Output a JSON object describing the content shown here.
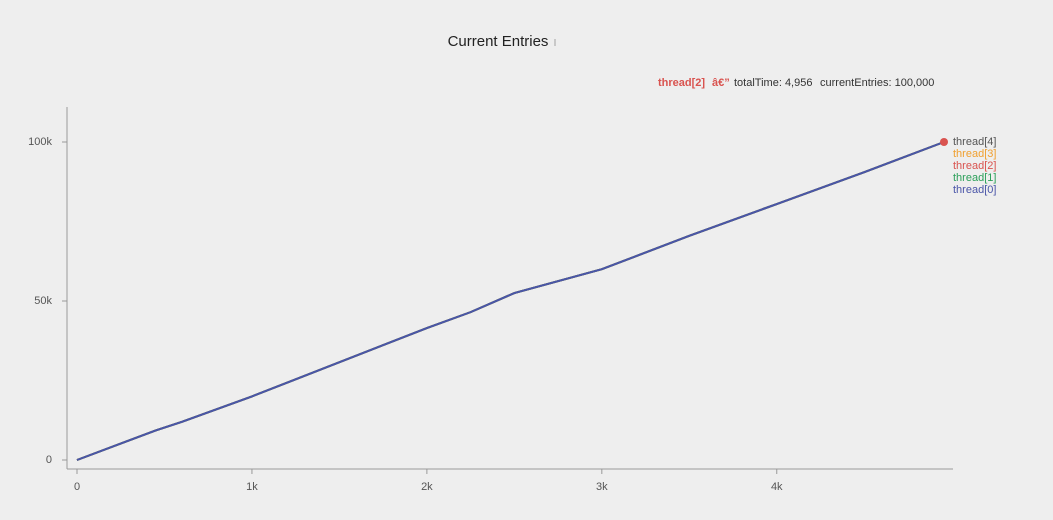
{
  "chart_data": {
    "type": "line",
    "title": "Current Entries",
    "x": [
      0,
      450,
      600,
      1000,
      2000,
      2250,
      2500,
      3000,
      3500,
      4000,
      4500,
      4956
    ],
    "series": [
      {
        "name": "thread[4]",
        "color": "#555555",
        "values": [
          0,
          9300,
          12000,
          20000,
          41500,
          46500,
          52500,
          60000,
          70500,
          80500,
          90500,
          100000
        ]
      },
      {
        "name": "thread[3]",
        "color": "#f0a030",
        "values": [
          0,
          9300,
          12000,
          20000,
          41500,
          46500,
          52500,
          60000,
          70500,
          80500,
          90500,
          100000
        ]
      },
      {
        "name": "thread[2]",
        "color": "#d9534f",
        "values": [
          0,
          9300,
          12000,
          20000,
          41500,
          46500,
          52500,
          60000,
          70500,
          80500,
          90500,
          100000
        ]
      },
      {
        "name": "thread[1]",
        "color": "#2ca05a",
        "values": [
          0,
          9300,
          12000,
          20000,
          41500,
          46500,
          52500,
          60000,
          70500,
          80500,
          90500,
          100000
        ]
      },
      {
        "name": "thread[0]",
        "color": "#4a55a8",
        "values": [
          0,
          9300,
          12000,
          20000,
          41500,
          46500,
          52500,
          60000,
          70500,
          80500,
          90500,
          100000
        ]
      }
    ],
    "xlim": [
      0,
      4956
    ],
    "ylim": [
      0,
      100000
    ],
    "xticks": [
      0,
      {
        "value": 1000,
        "label": "1k"
      },
      {
        "value": 2000,
        "label": "2k"
      },
      {
        "value": 3000,
        "label": "3k"
      },
      {
        "value": 4000,
        "label": "4k"
      }
    ],
    "yticks": [
      0,
      {
        "value": 50000,
        "label": "50k"
      },
      {
        "value": 100000,
        "label": "100k"
      }
    ],
    "grid": false,
    "legend": "right",
    "tooltip": {
      "series": "thread[2]",
      "separator": "â€”",
      "fields": [
        "totalTime: 4,956",
        "currentEntries: 100,000"
      ]
    }
  }
}
